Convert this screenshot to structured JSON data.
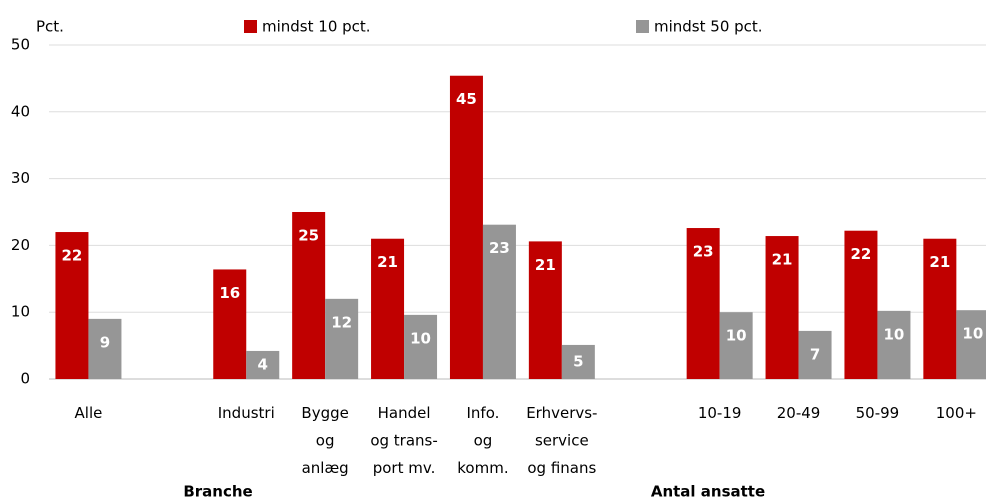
{
  "chart_data": {
    "type": "bar",
    "y_label": "Pct.",
    "categories": [
      "Alle",
      null,
      "Industri",
      "Bygge\nog\nanlæg",
      "Handel\nog trans-\nport mv.",
      "Info.\nog\nkomm.",
      "Erhvervs-\nservice\nog finans",
      null,
      "10-19",
      "20-49",
      "50-99",
      "100+"
    ],
    "series": [
      {
        "name": "mindst 10 pct.",
        "color": "#c00000",
        "values": [
          22,
          null,
          16.4,
          25,
          21,
          45.4,
          20.6,
          null,
          22.6,
          21.4,
          22.2,
          21
        ],
        "value_labels": [
          "22",
          null,
          "16",
          "25",
          "21",
          "45",
          "21",
          null,
          "23",
          "21",
          "22",
          "21"
        ]
      },
      {
        "name": "mindst 50 pct.",
        "color": "#969696",
        "values": [
          9,
          null,
          4.2,
          12,
          9.6,
          23.1,
          5.1,
          null,
          10,
          7.2,
          10.2,
          10.3
        ],
        "value_labels": [
          "9",
          null,
          "4",
          "12",
          "10",
          "23",
          "5",
          null,
          "10",
          "7",
          "10",
          "10"
        ]
      }
    ],
    "group_labels": [
      "Branche",
      "Antal ansatte"
    ],
    "ylim": [
      0,
      50
    ],
    "yticks": [
      0,
      10,
      20,
      30,
      40,
      50
    ],
    "grid": true
  }
}
